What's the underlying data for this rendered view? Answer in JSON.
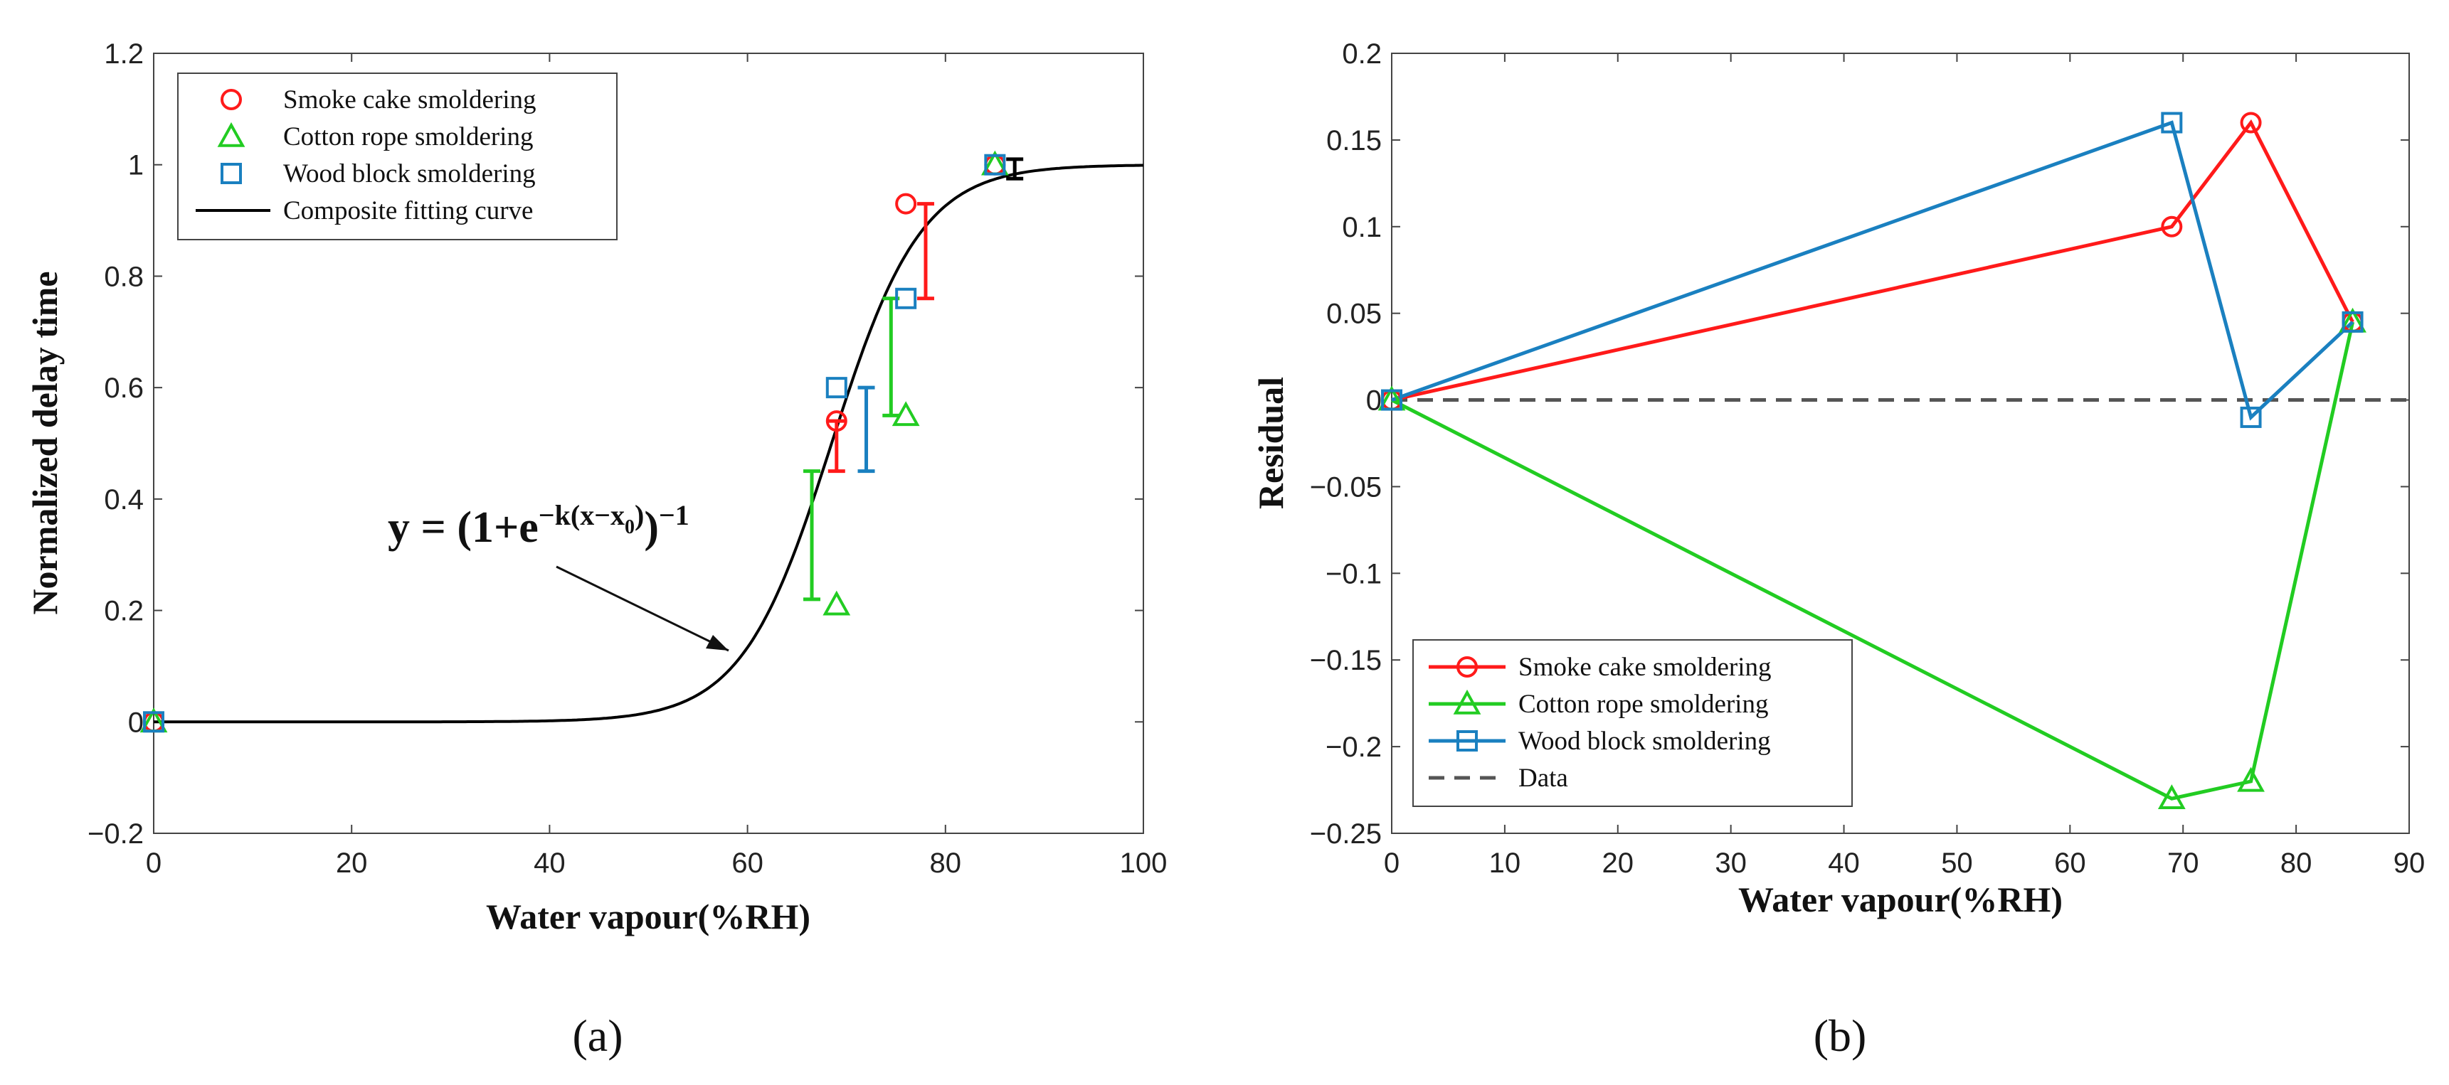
{
  "colors": {
    "smoke": "#ff1a1a",
    "cotton": "#22cc22",
    "wood": "#1a80c0",
    "fit": "#000000",
    "data_line": "#555555"
  },
  "chart_data": [
    {
      "id": "a",
      "type": "scatter",
      "panel_label": "(a)",
      "xlabel": "Water vapour(%RH)",
      "ylabel": "Normalized delay time",
      "xlim": [
        0,
        100
      ],
      "ylim": [
        -0.2,
        1.2
      ],
      "xticks": [
        0,
        20,
        40,
        60,
        80,
        100
      ],
      "xtick_labels": [
        "0",
        "20",
        "40",
        "60",
        "80",
        "100"
      ],
      "yticks": [
        -0.2,
        0,
        0.2,
        0.4,
        0.6,
        0.8,
        1,
        1.2
      ],
      "ytick_labels": [
        "−0.2",
        "0",
        "0.2",
        "0.4",
        "0.6",
        "0.8",
        "1",
        "1.2"
      ],
      "equation": {
        "prefix": "y = (1+e",
        "exp_main": "−k(x−x",
        "exp_sub": "0",
        "exp_close": ")",
        "suffix": ")",
        "power": "−1"
      },
      "series": [
        {
          "name": "Smoke cake smoldering",
          "marker": "circle",
          "color": "#ff1a1a",
          "x": [
            0,
            69,
            76,
            85
          ],
          "y": [
            0,
            0.54,
            0.93,
            1.0
          ]
        },
        {
          "name": "Cotton rope smoldering",
          "marker": "triangle",
          "color": "#22cc22",
          "x": [
            0,
            69,
            76,
            85
          ],
          "y": [
            0,
            0.21,
            0.55,
            1.0
          ]
        },
        {
          "name": "Wood block smoldering",
          "marker": "square",
          "color": "#1a80c0",
          "x": [
            0,
            69,
            76,
            85
          ],
          "y": [
            0,
            0.6,
            0.76,
            1.0
          ]
        }
      ],
      "fit_curve": {
        "name": "Composite fitting curve",
        "type": "logistic",
        "k": 0.22,
        "x0": 68.5,
        "color": "#000000"
      },
      "error_bars": [
        {
          "x": 66.5,
          "low": 0.22,
          "high": 0.45,
          "color": "#22cc22"
        },
        {
          "x": 69,
          "low": 0.45,
          "high": 0.54,
          "color": "#ff1a1a"
        },
        {
          "x": 72,
          "low": 0.45,
          "high": 0.6,
          "color": "#1a80c0"
        },
        {
          "x": 74.5,
          "low": 0.55,
          "high": 0.76,
          "color": "#22cc22"
        },
        {
          "x": 78,
          "low": 0.76,
          "high": 0.93,
          "color": "#ff1a1a"
        },
        {
          "x": 87,
          "low": 0.975,
          "high": 1.01,
          "color": "#000000"
        }
      ],
      "legend": [
        "Smoke cake smoldering",
        "Cotton rope smoldering",
        "Wood block smoldering",
        "Composite fitting curve"
      ],
      "legend_position": "top-left"
    },
    {
      "id": "b",
      "type": "line",
      "panel_label": "(b)",
      "xlabel": "Water vapour(%RH)",
      "ylabel": "Residual",
      "xlim": [
        0,
        90
      ],
      "ylim": [
        -0.25,
        0.2
      ],
      "xticks": [
        0,
        10,
        20,
        30,
        40,
        50,
        60,
        70,
        80,
        90
      ],
      "xtick_labels": [
        "0",
        "10",
        "20",
        "30",
        "40",
        "50",
        "60",
        "70",
        "80",
        "90"
      ],
      "yticks": [
        -0.25,
        -0.2,
        -0.15,
        -0.1,
        -0.05,
        0,
        0.05,
        0.1,
        0.15,
        0.2
      ],
      "ytick_labels": [
        "−0.25",
        "−0.2",
        "−0.15",
        "−0.1",
        "−0.05",
        "0",
        "0.05",
        "0.1",
        "0.15",
        "0.2"
      ],
      "series": [
        {
          "name": "Smoke cake smoldering",
          "marker": "circle",
          "color": "#ff1a1a",
          "x": [
            0,
            69,
            76,
            85
          ],
          "y": [
            0,
            0.1,
            0.16,
            0.045
          ]
        },
        {
          "name": "Cotton rope smoldering",
          "marker": "triangle",
          "color": "#22cc22",
          "x": [
            0,
            69,
            76,
            85
          ],
          "y": [
            0,
            -0.23,
            -0.22,
            0.045
          ]
        },
        {
          "name": "Wood block smoldering",
          "marker": "square",
          "color": "#1a80c0",
          "x": [
            0,
            69,
            76,
            85
          ],
          "y": [
            0,
            0.16,
            -0.01,
            0.045
          ]
        }
      ],
      "reference_line": {
        "name": "Data",
        "y": 0,
        "style": "dashed",
        "color": "#555555"
      },
      "legend": [
        "Smoke cake smoldering",
        "Cotton rope smoldering",
        "Wood block smoldering",
        "Data"
      ],
      "legend_position": "bottom-left"
    }
  ]
}
